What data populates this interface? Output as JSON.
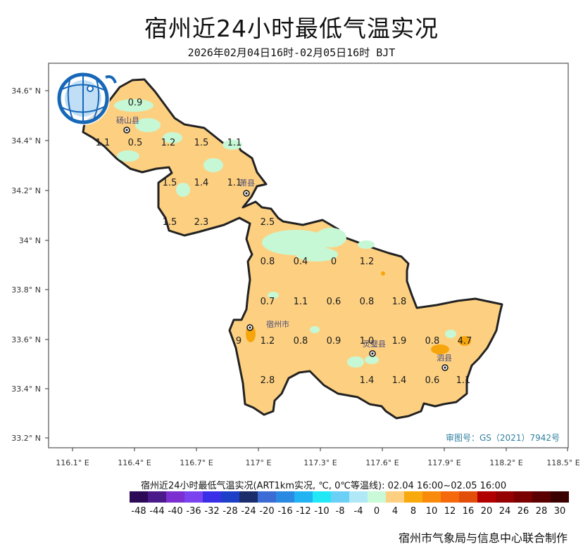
{
  "title": "宿州近24小时最低气温实况",
  "subtitle": "2026年02月04日16时-02月05日16时 BJT",
  "review_number": "审图号：GS（2021）7942号",
  "map": {
    "lat_ticks": [
      "34.6° N",
      "34.4° N",
      "34.2° N",
      "34° N",
      "33.8° N",
      "33.6° N",
      "33.4° N",
      "33.2° N"
    ],
    "lon_ticks": [
      "116.1° E",
      "116.4° E",
      "116.7° E",
      "117° E",
      "117.3° E",
      "117.6° E",
      "117.9° E",
      "118.2° E",
      "118.5° E"
    ],
    "cities": [
      {
        "name": "砀山县"
      },
      {
        "name": "萧县"
      },
      {
        "name": "宿州市"
      },
      {
        "name": "灵璧县"
      },
      {
        "name": "泗县"
      }
    ],
    "values": [
      "0.9",
      "1.1",
      "0.5",
      "1.2",
      "1.5",
      "1.1",
      "1.5",
      "1.4",
      "1.1",
      "1.5",
      "2.3",
      "2.5",
      "0.8",
      "0.4",
      "0",
      "1.2",
      "0.7",
      "1.1",
      "0.6",
      "0.8",
      "1.8",
      "1.2",
      "0.8",
      "0.9",
      "1.0",
      "1.9",
      "0.8",
      "4.7",
      "2.8",
      "1.4",
      "1.4",
      "0.6",
      "1.1",
      "9"
    ],
    "colors": {
      "land": "#fdd081",
      "cold": "#c6f8d5",
      "warm": "#f6a60c",
      "border": "#222222"
    }
  },
  "legend": {
    "caption": "宿州近24小时最低气温实况(ART1km实况, ℃, 0℃等温线): 02.04 16:00~02.05 16:00",
    "labels": [
      "-48",
      "-44",
      "-40",
      "-36",
      "-32",
      "-28",
      "-24",
      "-20",
      "-16",
      "-12",
      "-10",
      "-8",
      "-4",
      "0",
      "4",
      "8",
      "10",
      "12",
      "16",
      "20",
      "24",
      "26",
      "28",
      "30"
    ],
    "colors": [
      "#2d0a55",
      "#4a1a8a",
      "#7b2fd0",
      "#7a43ef",
      "#3b2ee8",
      "#1d3fc8",
      "#1a2d6a",
      "#3c6bd6",
      "#2a89e0",
      "#22b4f2",
      "#22e8f6",
      "#6ad0f6",
      "#b0e8f8",
      "#c9f9d6",
      "#fdd081",
      "#f8a90c",
      "#f98b0c",
      "#f5690c",
      "#e24d0a",
      "#b20000",
      "#950000",
      "#7a0000",
      "#5a0000",
      "#3a0000"
    ]
  },
  "footer": "宿州市气象局与信息中心联合制作"
}
